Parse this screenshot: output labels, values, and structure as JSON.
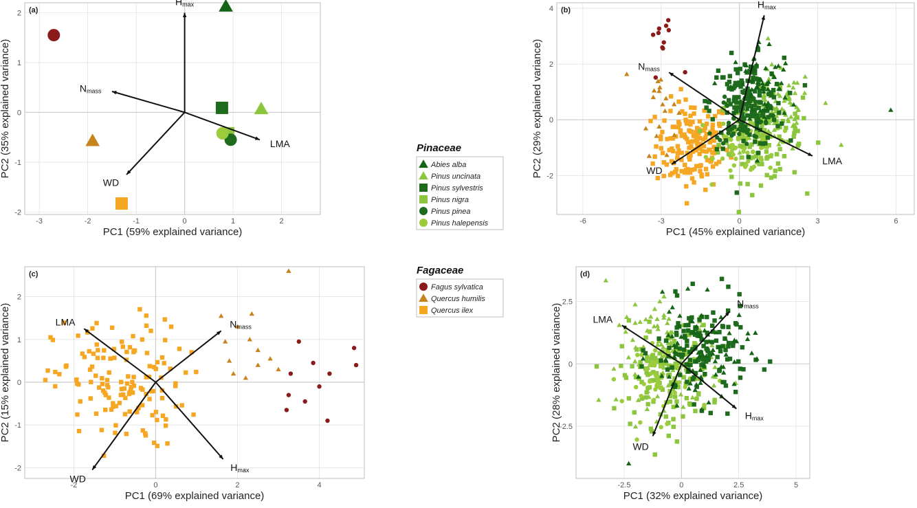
{
  "colors": {
    "abies_alba": "#156416",
    "pinus_uncinata": "#8cc63f",
    "pinus_sylvestris": "#1e6b1e",
    "pinus_nigra": "#8cc63f",
    "pinus_pinea": "#1e6b1e",
    "pinus_halepensis": "#9ccc3c",
    "fagus_sylvatica": "#8b1a1a",
    "quercus_humilis": "#c7841c",
    "quercus_ilex": "#f5a623",
    "arrow": "#111111",
    "grid": "#d9d9d9",
    "zero": "#cccccc"
  },
  "legend": {
    "groups": [
      {
        "title": "Pinaceae",
        "items": [
          {
            "label": "Abies alba",
            "shape": "triangle",
            "color_key": "abies_alba"
          },
          {
            "label": "Pinus uncinata",
            "shape": "triangle",
            "color_key": "pinus_uncinata"
          },
          {
            "label": "Pinus sylvestris",
            "shape": "square",
            "color_key": "pinus_sylvestris"
          },
          {
            "label": "Pinus nigra",
            "shape": "square",
            "color_key": "pinus_nigra"
          },
          {
            "label": "Pinus pinea",
            "shape": "circle",
            "color_key": "pinus_pinea"
          },
          {
            "label": "Pinus halepensis",
            "shape": "circle",
            "color_key": "pinus_halepensis"
          }
        ]
      },
      {
        "title": "Fagaceae",
        "items": [
          {
            "label": "Fagus sylvatica",
            "shape": "circle",
            "color_key": "fagus_sylvatica"
          },
          {
            "label": "Quercus humilis",
            "shape": "triangle",
            "color_key": "quercus_humilis"
          },
          {
            "label": "Quercus ilex",
            "shape": "square",
            "color_key": "quercus_ilex"
          }
        ]
      }
    ]
  },
  "chart_data": [
    {
      "type": "scatter",
      "panel": "(a)",
      "xlabel": "PC1 (59% explained variance)",
      "ylabel": "PC2 (35% explained variance)",
      "xlim": [
        -3.3,
        2.8
      ],
      "ylim": [
        -2.05,
        2.2
      ],
      "xticks": [
        -3,
        -2,
        -1,
        0,
        1,
        2
      ],
      "yticks": [
        -2,
        -1,
        0,
        1,
        2
      ],
      "grid": true,
      "series": [
        {
          "species": "abies_alba",
          "points": [
            [
              0.85,
              2.13
            ]
          ]
        },
        {
          "species": "pinus_uncinata",
          "points": [
            [
              1.58,
              0.07
            ]
          ]
        },
        {
          "species": "pinus_sylvestris",
          "points": [
            [
              0.77,
              0.09
            ]
          ]
        },
        {
          "species": "pinus_nigra",
          "points": [
            [
              0.9,
              -0.42
            ]
          ]
        },
        {
          "species": "pinus_pinea",
          "points": [
            [
              0.95,
              -0.55
            ]
          ]
        },
        {
          "species": "pinus_halepensis",
          "points": [
            [
              0.78,
              -0.42
            ]
          ]
        },
        {
          "species": "fagus_sylvatica",
          "points": [
            [
              -2.7,
              1.55
            ]
          ]
        },
        {
          "species": "quercus_humilis",
          "points": [
            [
              -1.9,
              -0.57
            ]
          ]
        },
        {
          "species": "quercus_ilex",
          "points": [
            [
              -1.3,
              -1.83
            ]
          ]
        }
      ],
      "vectors": [
        {
          "label": "H",
          "sub": "max",
          "end": [
            0.0,
            2.0
          ]
        },
        {
          "label": "N",
          "sub": "mass",
          "end": [
            -1.5,
            0.42
          ]
        },
        {
          "label": "LMA",
          "sub": "",
          "end": [
            1.55,
            -0.55
          ]
        },
        {
          "label": "WD",
          "sub": "",
          "end": [
            -1.2,
            -1.25
          ]
        }
      ]
    },
    {
      "type": "scatter",
      "panel": "(b)",
      "xlabel": "PC1 (45% explained variance)",
      "ylabel": "PC2 (29% explained variance)",
      "xlim": [
        -7,
        6.7
      ],
      "ylim": [
        -3.4,
        4.2
      ],
      "xticks": [
        -6,
        -3,
        0,
        3,
        6
      ],
      "yticks": [
        -2,
        0,
        2,
        4
      ],
      "grid": true,
      "clouds": [
        {
          "species": "quercus_ilex",
          "shape": "square",
          "n": 170,
          "center": [
            -1.8,
            -0.9
          ],
          "spread": [
            0.7,
            0.8
          ]
        },
        {
          "species": "quercus_humilis",
          "shape": "triangle",
          "n": 18,
          "center": [
            -3.1,
            0.6
          ],
          "spread": [
            0.35,
            0.9
          ]
        },
        {
          "species": "fagus_sylvatica",
          "shape": "circle",
          "n": 12,
          "center": [
            -2.9,
            2.9
          ],
          "spread": [
            0.3,
            0.6
          ]
        },
        {
          "species": "pinus_nigra",
          "shape": "square",
          "n": 120,
          "center": [
            0.8,
            -0.6
          ],
          "spread": [
            0.8,
            0.8
          ]
        },
        {
          "species": "pinus_uncinata",
          "shape": "triangle",
          "n": 90,
          "center": [
            1.4,
            0.3
          ],
          "spread": [
            0.7,
            0.8
          ]
        },
        {
          "species": "pinus_halepensis",
          "shape": "circle",
          "n": 70,
          "center": [
            0.3,
            -0.8
          ],
          "spread": [
            0.6,
            0.6
          ]
        },
        {
          "species": "pinus_sylvestris",
          "shape": "square",
          "n": 150,
          "center": [
            0.3,
            0.6
          ],
          "spread": [
            0.7,
            0.8
          ]
        },
        {
          "species": "abies_alba",
          "shape": "triangle",
          "n": 70,
          "center": [
            0.8,
            1.1
          ],
          "spread": [
            0.6,
            0.9
          ]
        },
        {
          "species": "pinus_pinea",
          "shape": "circle",
          "n": 50,
          "center": [
            0.1,
            0.1
          ],
          "spread": [
            0.5,
            0.5
          ]
        }
      ],
      "outliers": [
        {
          "species": "abies_alba",
          "shape": "triangle",
          "points": [
            [
              5.8,
              0.35
            ]
          ]
        },
        {
          "species": "pinus_uncinata",
          "shape": "triangle",
          "points": [
            [
              3.9,
              -0.9
            ],
            [
              3.3,
              0.6
            ]
          ]
        }
      ],
      "vectors": [
        {
          "label": "H",
          "sub": "max",
          "end": [
            0.95,
            3.75
          ]
        },
        {
          "label": "N",
          "sub": "mass",
          "end": [
            -2.7,
            1.7
          ]
        },
        {
          "label": "LMA",
          "sub": "",
          "end": [
            2.8,
            -1.3
          ]
        },
        {
          "label": "WD",
          "sub": "",
          "end": [
            -2.6,
            -1.6
          ]
        }
      ]
    },
    {
      "type": "scatter",
      "panel": "(c)",
      "xlabel": "PC1 (69% explained variance)",
      "ylabel": "PC2 (15% explained variance)",
      "xlim": [
        -3.2,
        5.1
      ],
      "ylim": [
        -2.25,
        2.7
      ],
      "xticks": [
        -2,
        0,
        2,
        4
      ],
      "yticks": [
        -2,
        -1,
        0,
        1,
        2
      ],
      "grid": true,
      "clouds": [
        {
          "species": "quercus_ilex",
          "shape": "square",
          "n": 140,
          "center": [
            -0.9,
            -0.05
          ],
          "spread": [
            0.8,
            0.75
          ]
        }
      ],
      "series": [
        {
          "species": "quercus_humilis",
          "shape": "triangle",
          "points": [
            [
              1.6,
              1.55
            ],
            [
              2.35,
              1.6
            ],
            [
              2.0,
              1.3
            ],
            [
              2.3,
              1.0
            ],
            [
              1.7,
              0.95
            ],
            [
              2.8,
              0.55
            ],
            [
              2.5,
              0.4
            ],
            [
              1.9,
              0.2
            ],
            [
              2.5,
              0.75
            ],
            [
              1.8,
              0.5
            ],
            [
              3.25,
              2.6
            ],
            [
              2.2,
              0.1
            ],
            [
              3.0,
              0.3
            ]
          ]
        },
        {
          "species": "fagus_sylvatica",
          "shape": "circle",
          "points": [
            [
              3.5,
              0.95
            ],
            [
              4.85,
              0.8
            ],
            [
              4.9,
              0.4
            ],
            [
              3.85,
              0.45
            ],
            [
              4.25,
              0.2
            ],
            [
              3.3,
              0.2
            ],
            [
              4.0,
              -0.1
            ],
            [
              3.25,
              -0.3
            ],
            [
              3.65,
              -0.45
            ],
            [
              3.2,
              -0.65
            ],
            [
              4.2,
              -0.9
            ]
          ]
        }
      ],
      "vectors": [
        {
          "label": "LMA",
          "sub": "",
          "end": [
            -1.75,
            1.25
          ]
        },
        {
          "label": "N",
          "sub": "mass",
          "end": [
            1.6,
            1.2
          ]
        },
        {
          "label": "WD",
          "sub": "",
          "end": [
            -1.55,
            -2.05
          ]
        },
        {
          "label": "H",
          "sub": "max",
          "end": [
            1.65,
            -1.8
          ]
        }
      ]
    },
    {
      "type": "scatter",
      "panel": "(d)",
      "xlabel": "PC1 (32% explained variance)",
      "ylabel": "PC2 (28% explained variance)",
      "xlim": [
        -4.6,
        5.6
      ],
      "ylim": [
        -4.6,
        3.9
      ],
      "xticks": [
        -2.5,
        0.0,
        2.5,
        5.0
      ],
      "yticks": [
        -2.5,
        0.0,
        2.5
      ],
      "grid": true,
      "clouds": [
        {
          "species": "pinus_nigra",
          "shape": "square",
          "n": 130,
          "center": [
            -0.7,
            -0.5
          ],
          "spread": [
            1.0,
            1.0
          ]
        },
        {
          "species": "pinus_uncinata",
          "shape": "triangle",
          "n": 110,
          "center": [
            -0.5,
            0.3
          ],
          "spread": [
            1.1,
            1.0
          ]
        },
        {
          "species": "pinus_halepensis",
          "shape": "circle",
          "n": 60,
          "center": [
            -0.8,
            -0.4
          ],
          "spread": [
            0.9,
            0.9
          ]
        },
        {
          "species": "pinus_sylvestris",
          "shape": "square",
          "n": 140,
          "center": [
            0.9,
            0.5
          ],
          "spread": [
            1.0,
            1.0
          ]
        },
        {
          "species": "abies_alba",
          "shape": "triangle",
          "n": 80,
          "center": [
            0.8,
            0.4
          ],
          "spread": [
            1.1,
            1.0
          ]
        }
      ],
      "outliers": [
        {
          "species": "pinus_uncinata",
          "shape": "triangle",
          "points": [
            [
              -3.3,
              3.35
            ]
          ]
        },
        {
          "species": "abies_alba",
          "shape": "triangle",
          "points": [
            [
              -2.3,
              -4.0
            ]
          ]
        }
      ],
      "vectors": [
        {
          "label": "N",
          "sub": "mass",
          "end": [
            2.1,
            2.1
          ]
        },
        {
          "label": "LMA",
          "sub": "",
          "end": [
            -2.6,
            1.55
          ]
        },
        {
          "label": "WD",
          "sub": "",
          "end": [
            -1.25,
            -2.9
          ]
        },
        {
          "label": "H",
          "sub": "max",
          "end": [
            2.4,
            -1.8
          ]
        }
      ]
    }
  ]
}
